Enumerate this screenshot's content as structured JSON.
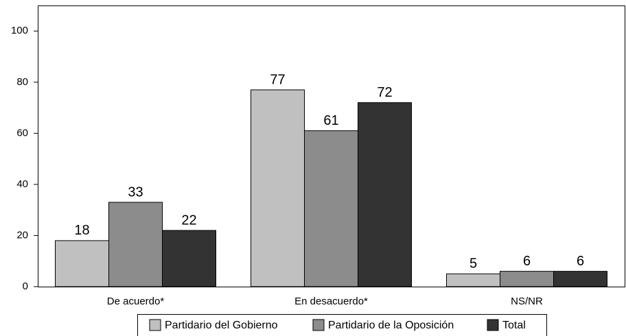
{
  "chart_data": {
    "type": "bar",
    "categories": [
      "De acuerdo*",
      "En desacuerdo*",
      "NS/NR"
    ],
    "series": [
      {
        "name": "Partidario del Gobierno",
        "color": "#c0c0c0",
        "values": [
          18,
          77,
          5
        ]
      },
      {
        "name": "Partidario de la Oposición",
        "color": "#8c8c8c",
        "values": [
          33,
          61,
          6
        ]
      },
      {
        "name": "Total",
        "color": "#333333",
        "values": [
          22,
          72,
          6
        ]
      }
    ],
    "ylim": [
      0,
      110
    ],
    "yticks": [
      0,
      20,
      40,
      60,
      80,
      100
    ],
    "grid": false,
    "legend": "bottom"
  }
}
